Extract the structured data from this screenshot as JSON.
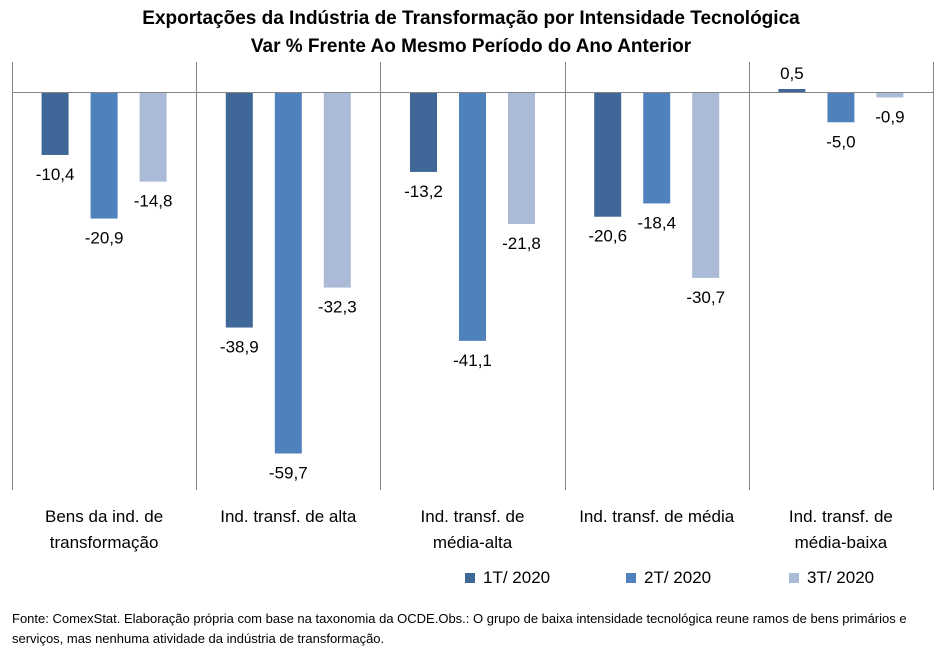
{
  "title_line1": "Exportações da Indústria de Transformação por Intensidade Tecnológica",
  "title_line2": "Var % Frente Ao Mesmo Período do Ano Anterior",
  "footnote": "Fonte: ComexStat. Elaboração própria com base na taxonomia da OCDE.Obs.: O grupo de baixa intensidade tecnológica reune ramos de bens primários e serviços, mas nenhuma atividade da indústria de transformação.",
  "chart_data": {
    "type": "bar",
    "title": "Exportações da Indústria de Transformação por Intensidade Tecnológica\nVar % Frente Ao Mesmo Período do Ano Anterior",
    "categories": [
      [
        "Bens da ind. de",
        "transformação"
      ],
      [
        "Ind. transf. de alta"
      ],
      [
        "Ind. transf. de",
        "média-alta"
      ],
      [
        "Ind. transf. de média"
      ],
      [
        "Ind. transf. de",
        "média-baixa"
      ]
    ],
    "series": [
      {
        "name": "1T/ 2020",
        "color": "#3f6797",
        "values": [
          -10.4,
          -38.9,
          -13.2,
          -20.6,
          0.5
        ],
        "labels": [
          "-10,4",
          "-38,9",
          "-13,2",
          "-20,6",
          "0,5"
        ]
      },
      {
        "name": "2T/ 2020",
        "color": "#4f81bd",
        "values": [
          -20.9,
          -59.7,
          -41.1,
          -18.4,
          -5.0
        ],
        "labels": [
          "-20,9",
          "-59,7",
          "-41,1",
          "-18,4",
          "-5,0"
        ]
      },
      {
        "name": "3T/ 2020",
        "color": "#aabad7",
        "values": [
          -14.8,
          -32.3,
          -21.8,
          -30.7,
          -0.9
        ],
        "labels": [
          "-14,8",
          "-32,3",
          "-21,8",
          "-30,7",
          "-0,9"
        ]
      }
    ],
    "ylim": [
      -65,
      5
    ],
    "legend_position": "bottom-right",
    "grid": false
  }
}
